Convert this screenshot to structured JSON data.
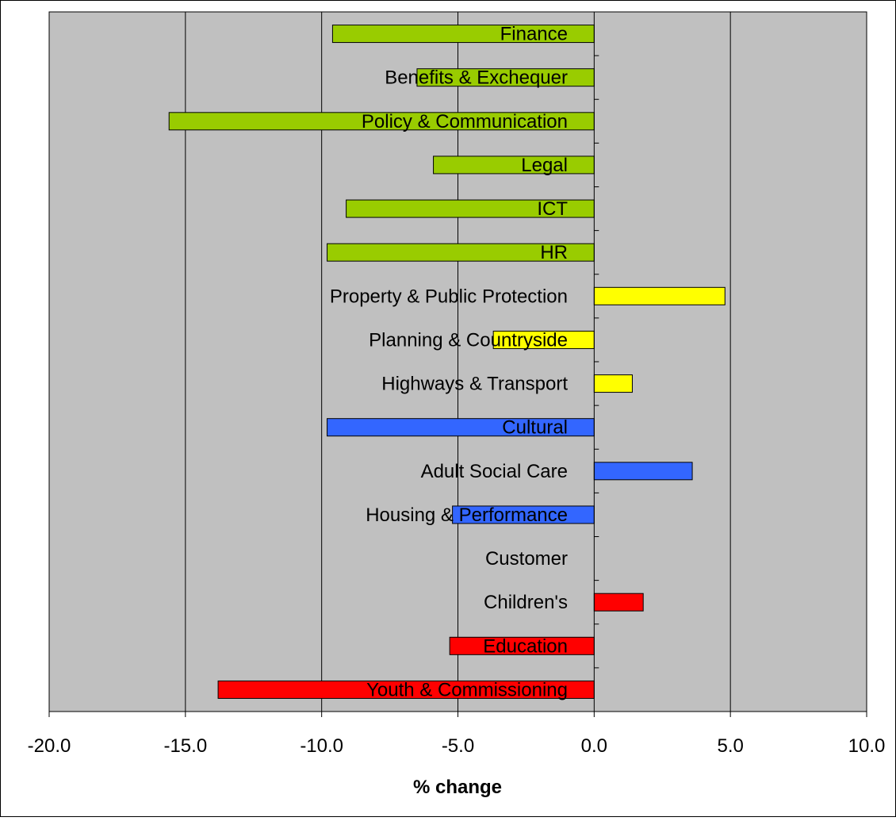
{
  "chart_data": {
    "type": "bar",
    "orientation": "horizontal",
    "xlabel": "% change",
    "ylabel": "",
    "xlim": [
      -20,
      10
    ],
    "xticks": [
      -20,
      -15,
      -10,
      -5,
      0,
      5,
      10
    ],
    "xtick_labels": [
      "-20.0",
      "-15.0",
      "-10.0",
      "-5.0",
      "0.0",
      "5.0",
      "10.0"
    ],
    "grid": "vertical",
    "legend": "none",
    "plot_background": "#c0c0c0",
    "categories": [
      "Finance",
      "Benefits & Exchequer",
      "Policy & Communication",
      "Legal",
      "ICT",
      "HR",
      "Property & Public Protection",
      "Planning & Countryside",
      "Highways & Transport",
      "Cultural",
      "Adult Social Care",
      "Housing & Performance",
      "Customer",
      "Children's",
      "Education",
      "Youth & Commissioning"
    ],
    "values": [
      -9.6,
      -6.5,
      -15.6,
      -5.9,
      -9.1,
      -9.8,
      4.8,
      -3.7,
      1.4,
      -9.8,
      3.6,
      -5.2,
      0,
      1.8,
      -5.3,
      -13.8
    ],
    "colors": [
      "#99cc00",
      "#99cc00",
      "#99cc00",
      "#99cc00",
      "#99cc00",
      "#99cc00",
      "#ffff00",
      "#ffff00",
      "#ffff00",
      "#3366ff",
      "#3366ff",
      "#3366ff",
      "#ff0000",
      "#ff0000",
      "#ff0000",
      "#ff0000"
    ]
  }
}
